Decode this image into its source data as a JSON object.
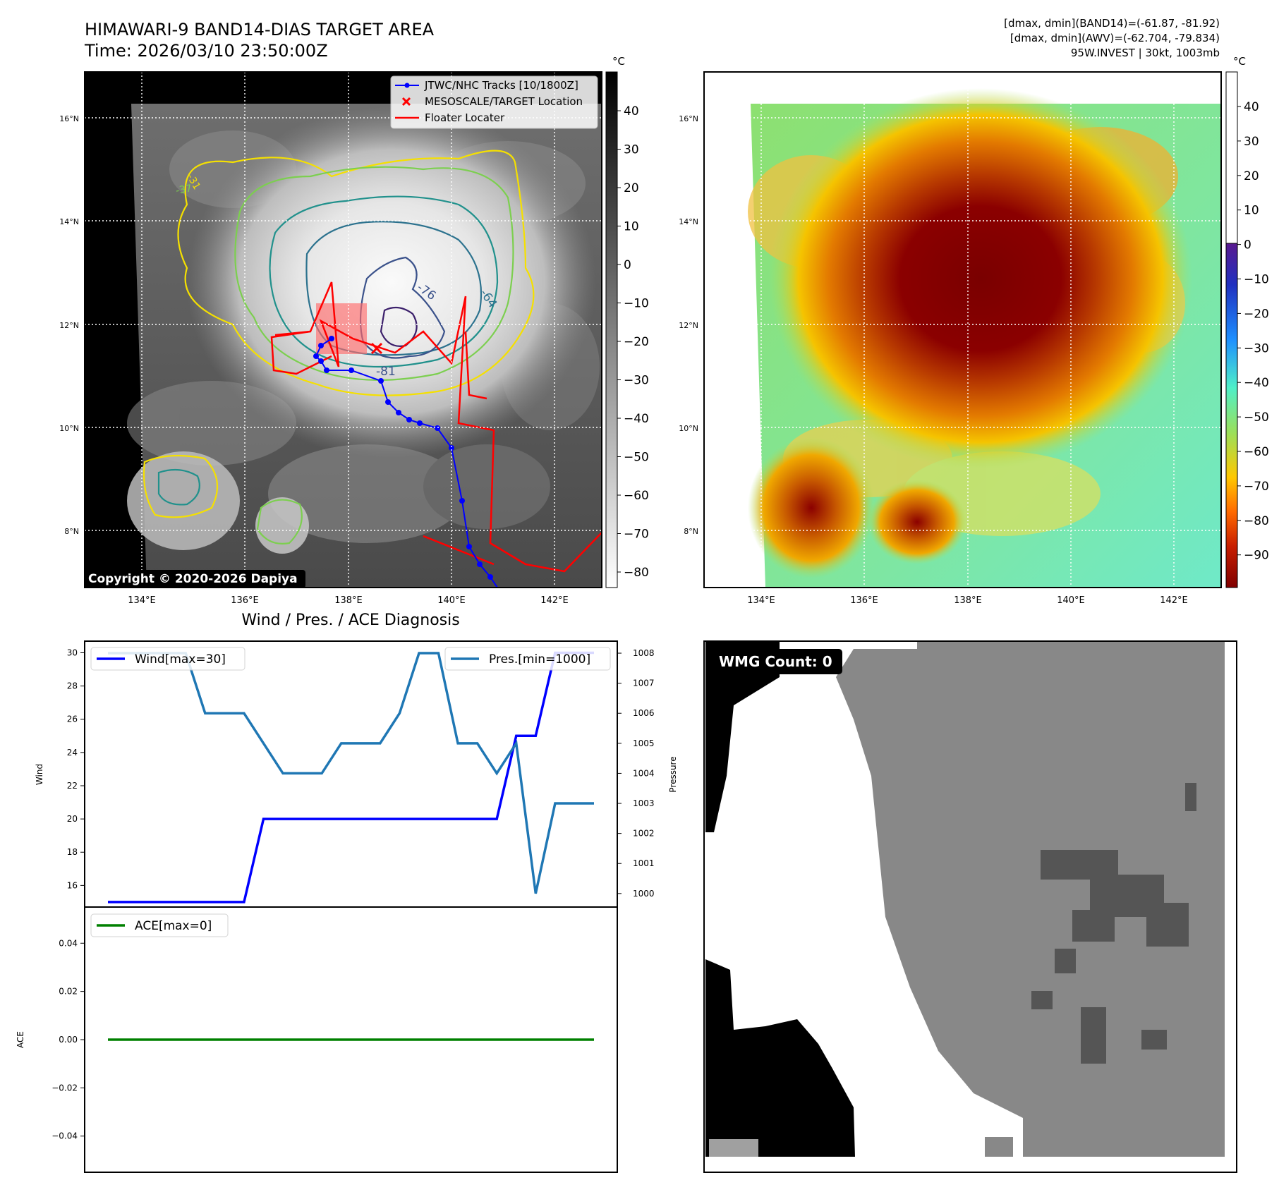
{
  "header": {
    "title_line1": "HIMAWARI-9 BAND14-DIAS TARGET AREA",
    "title_line2": "Time: 2026/03/10 23:50:00Z",
    "info_line1": "[dmax, dmin](BAND14)=(-61.87, -81.92)",
    "info_line2": "[dmax, dmin](AWV)=(-62.704, -79.834)",
    "info_line3": "95W.INVEST | 30kt, 1003mb"
  },
  "colors": {
    "track": "#0000ff",
    "floater": "#ff0000",
    "wind": "#0000ff",
    "pressure": "#1f77b4",
    "ace": "#008000",
    "contour_yellow": "#f5e000",
    "contour_green": "#7ccf4f",
    "contour_teal": "#21918c",
    "contour_blue": "#3b528b",
    "contour_purple": "#3b1f6b"
  },
  "map_ir": {
    "legend": [
      {
        "label": "JTWC/NHC Tracks [10/1800Z]",
        "icon": "line-dot-icon"
      },
      {
        "label": "MESOSCALE/TARGET Location",
        "icon": "x-marker-icon"
      },
      {
        "label": "Floater Locater",
        "icon": "red-line-icon"
      }
    ],
    "copyright": "Copyright © 2020-2026 Dapiya",
    "contour_labels": [
      "-76",
      "-64",
      "-81",
      "-31",
      "-37"
    ],
    "colorbar_unit": "°C",
    "colorbar_ticks": [
      "40",
      "30",
      "20",
      "10",
      "0",
      "−10",
      "−20",
      "−30",
      "−40",
      "−50",
      "−60",
      "−70",
      "−80"
    ]
  },
  "map_awv": {
    "colorbar_unit": "°C",
    "colorbar_ticks": [
      "40",
      "30",
      "20",
      "10",
      "0",
      "−10",
      "−20",
      "−30",
      "−40",
      "−50",
      "−60",
      "−70",
      "−80",
      "−90"
    ]
  },
  "map_axes": {
    "lon_ticks": [
      "134°E",
      "136°E",
      "138°E",
      "140°E",
      "142°E"
    ],
    "lat_ticks": [
      "16°N",
      "14°N",
      "12°N",
      "10°N",
      "8°N"
    ]
  },
  "wmg": {
    "count_label": "WMG Count: 0"
  },
  "chart_data": [
    {
      "type": "line",
      "title": "Wind / Pres. / ACE Diagnosis",
      "x": [
        0,
        1,
        2,
        3,
        4,
        5,
        6,
        7,
        8,
        9,
        10,
        11,
        12,
        13,
        14,
        15,
        16,
        17,
        18,
        19,
        20,
        21,
        22,
        23,
        24,
        25
      ],
      "series": [
        {
          "name": "Wind[max=30]",
          "axis": "left",
          "values": [
            15,
            15,
            15,
            15,
            15,
            15,
            15,
            15,
            20,
            20,
            20,
            20,
            20,
            20,
            20,
            20,
            20,
            20,
            20,
            20,
            20,
            25,
            25,
            30,
            30,
            30
          ]
        },
        {
          "name": "Pres.[min=1000]",
          "axis": "right",
          "values": [
            1008,
            1008,
            1008,
            1008,
            1008,
            1006,
            1006,
            1006,
            1005,
            1004,
            1004,
            1004,
            1005,
            1005,
            1005,
            1006,
            1008,
            1008,
            1005,
            1005,
            1004,
            1005,
            1000,
            1003,
            1003,
            1003
          ]
        }
      ],
      "ylabel": "Wind",
      "y2label": "Pressure",
      "ylim": [
        14.7,
        30.7
      ],
      "y2lim": [
        999.55,
        1008.4
      ],
      "yticks": [
        16,
        18,
        20,
        22,
        24,
        26,
        28,
        30
      ],
      "y2ticks": [
        1000,
        1001,
        1002,
        1003,
        1004,
        1005,
        1006,
        1007,
        1008
      ]
    },
    {
      "type": "line",
      "x": [
        0,
        25
      ],
      "series": [
        {
          "name": "ACE[max=0]",
          "values": [
            0,
            0
          ]
        }
      ],
      "ylabel": "ACE",
      "ylim": [
        -0.055,
        0.055
      ],
      "yticks": [
        0.04,
        0.02,
        0.0,
        -0.02,
        -0.04
      ],
      "ytick_labels": [
        "0.04",
        "0.02",
        "0.00",
        "−0.02",
        "−0.04"
      ]
    }
  ]
}
